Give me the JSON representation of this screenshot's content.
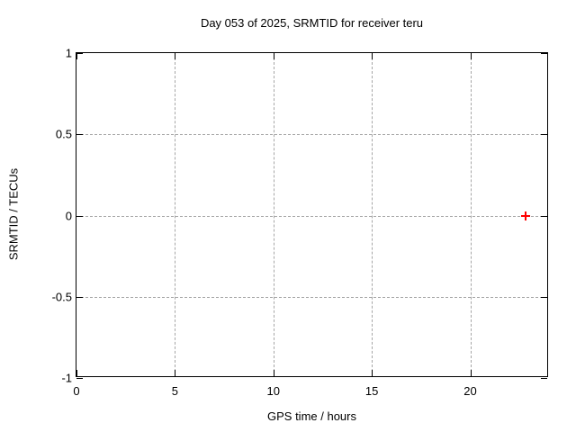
{
  "title": "Day 053 of 2025, SRMTID for receiver teru",
  "colors": {
    "background": "#ffffff",
    "border": "#000000",
    "grid": "#a6a6a6",
    "marker": "#ff0000"
  },
  "chart_data": {
    "type": "scatter",
    "title": "Day 053 of 2025, SRMTID for receiver teru",
    "xlabel": "GPS time / hours",
    "ylabel": "SRMTID / TECUs",
    "xlim": [
      0,
      24
    ],
    "ylim": [
      -1,
      1
    ],
    "x_ticks": [
      0,
      5,
      10,
      15,
      20
    ],
    "y_ticks": [
      -1,
      -0.5,
      0,
      0.5,
      1
    ],
    "grid": true,
    "legend": "none",
    "series": [
      {
        "name": "SRMTID",
        "marker": "plus",
        "color": "#ff0000",
        "points": [
          {
            "x": 22.8,
            "y": 0.0
          }
        ]
      }
    ]
  }
}
